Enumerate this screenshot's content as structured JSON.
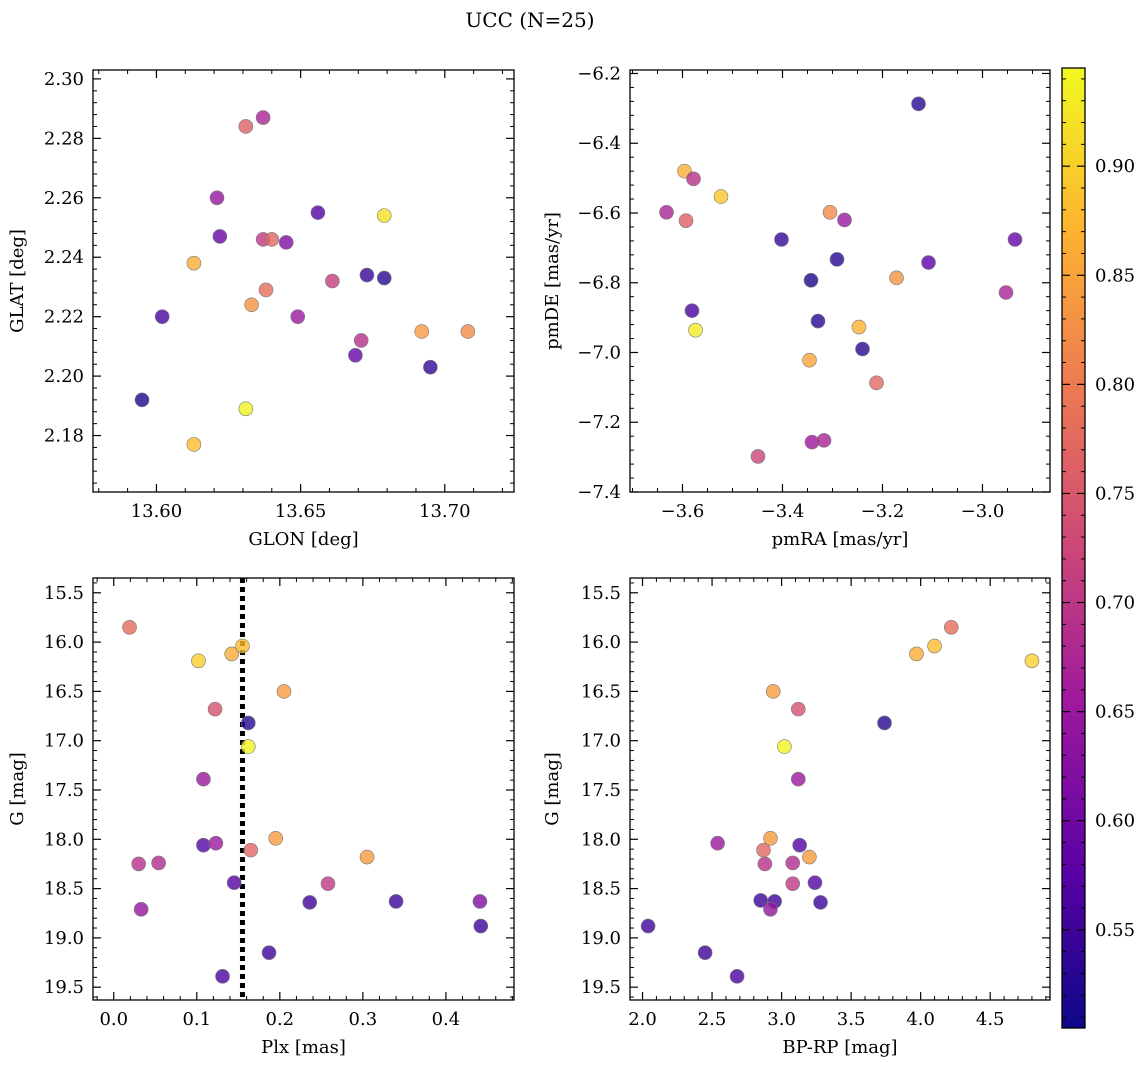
{
  "figure": {
    "title": "UCC (N=25)"
  },
  "colorbar": {
    "colormap": [
      "#0d0887",
      "#5c01a6",
      "#9c179e",
      "#cc4778",
      "#ed7953",
      "#fdb42f",
      "#f0f921"
    ],
    "range": [
      0.505,
      0.945
    ],
    "ticks": [
      "0.55",
      "0.60",
      "0.65",
      "0.70",
      "0.75",
      "0.80",
      "0.85",
      "0.90"
    ]
  },
  "chart_data": [
    {
      "type": "scatter",
      "xlabel": "GLON [deg]",
      "ylabel": "GLAT [deg]",
      "xlim": [
        13.578,
        13.724
      ],
      "ylim": [
        2.161,
        2.303
      ],
      "xticks": [
        "13.60",
        "13.65",
        "13.70"
      ],
      "yticks": [
        "2.18",
        "2.20",
        "2.22",
        "2.24",
        "2.26",
        "2.28",
        "2.30"
      ],
      "points": [
        {
          "x": 13.595,
          "y": 2.192,
          "c": 0.52
        },
        {
          "x": 13.602,
          "y": 2.22,
          "c": 0.56
        },
        {
          "x": 13.613,
          "y": 2.238,
          "c": 0.86
        },
        {
          "x": 13.613,
          "y": 2.177,
          "c": 0.88
        },
        {
          "x": 13.621,
          "y": 2.26,
          "c": 0.64
        },
        {
          "x": 13.622,
          "y": 2.247,
          "c": 0.59
        },
        {
          "x": 13.631,
          "y": 2.284,
          "c": 0.76
        },
        {
          "x": 13.631,
          "y": 2.189,
          "c": 0.94
        },
        {
          "x": 13.633,
          "y": 2.224,
          "c": 0.83
        },
        {
          "x": 13.637,
          "y": 2.287,
          "c": 0.67
        },
        {
          "x": 13.637,
          "y": 2.246,
          "c": 0.7
        },
        {
          "x": 13.638,
          "y": 2.229,
          "c": 0.78
        },
        {
          "x": 13.64,
          "y": 2.246,
          "c": 0.77
        },
        {
          "x": 13.645,
          "y": 2.245,
          "c": 0.62
        },
        {
          "x": 13.649,
          "y": 2.22,
          "c": 0.65
        },
        {
          "x": 13.656,
          "y": 2.255,
          "c": 0.57
        },
        {
          "x": 13.661,
          "y": 2.232,
          "c": 0.71
        },
        {
          "x": 13.669,
          "y": 2.207,
          "c": 0.59
        },
        {
          "x": 13.671,
          "y": 2.212,
          "c": 0.69
        },
        {
          "x": 13.673,
          "y": 2.234,
          "c": 0.54
        },
        {
          "x": 13.679,
          "y": 2.254,
          "c": 0.92
        },
        {
          "x": 13.679,
          "y": 2.233,
          "c": 0.53
        },
        {
          "x": 13.692,
          "y": 2.215,
          "c": 0.84
        },
        {
          "x": 13.695,
          "y": 2.203,
          "c": 0.54
        },
        {
          "x": 13.708,
          "y": 2.215,
          "c": 0.82
        }
      ]
    },
    {
      "type": "scatter",
      "xlabel": "pmRA [mas/yr]",
      "ylabel": "pmDE [mas/yr]",
      "xlim": [
        -3.705,
        -2.865
      ],
      "ylim": [
        -7.4,
        -6.19
      ],
      "xticks": [
        "-3.6",
        "-3.4",
        "-3.2",
        "-3.0"
      ],
      "yticks": [
        "-7.4",
        "-7.2",
        "-7.0",
        "-6.8",
        "-6.6",
        "-6.4",
        "-6.2"
      ],
      "points": [
        {
          "x": -3.128,
          "y": -6.287,
          "c": 0.53
        },
        {
          "x": -3.596,
          "y": -6.48,
          "c": 0.86
        },
        {
          "x": -3.578,
          "y": -6.502,
          "c": 0.69
        },
        {
          "x": -3.523,
          "y": -6.553,
          "c": 0.89
        },
        {
          "x": -3.632,
          "y": -6.598,
          "c": 0.67
        },
        {
          "x": -3.593,
          "y": -6.622,
          "c": 0.76
        },
        {
          "x": -3.305,
          "y": -6.598,
          "c": 0.82
        },
        {
          "x": -3.276,
          "y": -6.62,
          "c": 0.65
        },
        {
          "x": -3.402,
          "y": -6.676,
          "c": 0.54
        },
        {
          "x": -2.935,
          "y": -6.676,
          "c": 0.59
        },
        {
          "x": -3.291,
          "y": -6.733,
          "c": 0.53
        },
        {
          "x": -3.108,
          "y": -6.742,
          "c": 0.58
        },
        {
          "x": -3.343,
          "y": -6.793,
          "c": 0.52
        },
        {
          "x": -3.172,
          "y": -6.786,
          "c": 0.83
        },
        {
          "x": -2.953,
          "y": -6.828,
          "c": 0.67
        },
        {
          "x": -3.581,
          "y": -6.88,
          "c": 0.56
        },
        {
          "x": -3.329,
          "y": -6.91,
          "c": 0.53
        },
        {
          "x": -3.574,
          "y": -6.936,
          "c": 0.93
        },
        {
          "x": -3.247,
          "y": -6.927,
          "c": 0.87
        },
        {
          "x": -3.24,
          "y": -6.99,
          "c": 0.53
        },
        {
          "x": -3.346,
          "y": -7.022,
          "c": 0.85
        },
        {
          "x": -3.212,
          "y": -7.087,
          "c": 0.77
        },
        {
          "x": -3.341,
          "y": -7.257,
          "c": 0.65
        },
        {
          "x": -3.317,
          "y": -7.252,
          "c": 0.67
        },
        {
          "x": -3.449,
          "y": -7.298,
          "c": 0.72
        }
      ]
    },
    {
      "type": "scatter",
      "xlabel": "Plx [mas]",
      "ylabel": "G [mag]",
      "xlim": [
        -0.025,
        0.482
      ],
      "ylim": [
        19.63,
        15.35
      ],
      "xticks": [
        "0.0",
        "0.1",
        "0.2",
        "0.3",
        "0.4"
      ],
      "yticks": [
        "15.5",
        "16.0",
        "16.5",
        "17.0",
        "17.5",
        "18.0",
        "18.5",
        "19.0",
        "19.5"
      ],
      "vline": {
        "x": 0.155,
        "style": "dotted",
        "color": "#000000"
      },
      "points": [
        {
          "x": 0.019,
          "y": 15.85,
          "c": 0.78
        },
        {
          "x": 0.102,
          "y": 16.19,
          "c": 0.9
        },
        {
          "x": 0.142,
          "y": 16.12,
          "c": 0.86
        },
        {
          "x": 0.155,
          "y": 16.04,
          "c": 0.88
        },
        {
          "x": 0.205,
          "y": 16.5,
          "c": 0.84
        },
        {
          "x": 0.122,
          "y": 16.68,
          "c": 0.74
        },
        {
          "x": 0.162,
          "y": 16.82,
          "c": 0.53
        },
        {
          "x": 0.162,
          "y": 17.06,
          "c": 0.94
        },
        {
          "x": 0.108,
          "y": 17.39,
          "c": 0.65
        },
        {
          "x": 0.108,
          "y": 18.06,
          "c": 0.57
        },
        {
          "x": 0.123,
          "y": 18.04,
          "c": 0.65
        },
        {
          "x": 0.165,
          "y": 18.11,
          "c": 0.77
        },
        {
          "x": 0.195,
          "y": 17.99,
          "c": 0.84
        },
        {
          "x": 0.305,
          "y": 18.18,
          "c": 0.84
        },
        {
          "x": 0.03,
          "y": 18.25,
          "c": 0.69
        },
        {
          "x": 0.054,
          "y": 18.24,
          "c": 0.68
        },
        {
          "x": 0.145,
          "y": 18.44,
          "c": 0.57
        },
        {
          "x": 0.258,
          "y": 18.45,
          "c": 0.7
        },
        {
          "x": 0.033,
          "y": 18.71,
          "c": 0.64
        },
        {
          "x": 0.236,
          "y": 18.64,
          "c": 0.55
        },
        {
          "x": 0.34,
          "y": 18.63,
          "c": 0.55
        },
        {
          "x": 0.441,
          "y": 18.63,
          "c": 0.62
        },
        {
          "x": 0.442,
          "y": 18.88,
          "c": 0.55
        },
        {
          "x": 0.187,
          "y": 19.15,
          "c": 0.55
        },
        {
          "x": 0.131,
          "y": 19.39,
          "c": 0.56
        }
      ]
    },
    {
      "type": "scatter",
      "xlabel": "BP-RP [mag]",
      "ylabel": "G [mag]",
      "xlim": [
        1.91,
        4.93
      ],
      "ylim": [
        19.63,
        15.35
      ],
      "xticks": [
        "2.0",
        "2.5",
        "3.0",
        "3.5",
        "4.0",
        "4.5"
      ],
      "yticks": [
        "15.5",
        "16.0",
        "16.5",
        "17.0",
        "17.5",
        "18.0",
        "18.5",
        "19.0",
        "19.5"
      ],
      "points": [
        {
          "x": 4.22,
          "y": 15.85,
          "c": 0.78
        },
        {
          "x": 4.1,
          "y": 16.04,
          "c": 0.88
        },
        {
          "x": 3.97,
          "y": 16.12,
          "c": 0.86
        },
        {
          "x": 4.8,
          "y": 16.19,
          "c": 0.9
        },
        {
          "x": 2.94,
          "y": 16.5,
          "c": 0.84
        },
        {
          "x": 3.12,
          "y": 16.68,
          "c": 0.74
        },
        {
          "x": 3.74,
          "y": 16.82,
          "c": 0.53
        },
        {
          "x": 3.02,
          "y": 17.06,
          "c": 0.94
        },
        {
          "x": 3.12,
          "y": 17.39,
          "c": 0.65
        },
        {
          "x": 2.92,
          "y": 17.99,
          "c": 0.84
        },
        {
          "x": 2.54,
          "y": 18.04,
          "c": 0.65
        },
        {
          "x": 3.13,
          "y": 18.06,
          "c": 0.57
        },
        {
          "x": 2.87,
          "y": 18.11,
          "c": 0.77
        },
        {
          "x": 3.2,
          "y": 18.18,
          "c": 0.84
        },
        {
          "x": 2.88,
          "y": 18.25,
          "c": 0.69
        },
        {
          "x": 3.08,
          "y": 18.24,
          "c": 0.68
        },
        {
          "x": 3.08,
          "y": 18.45,
          "c": 0.7
        },
        {
          "x": 3.24,
          "y": 18.44,
          "c": 0.57
        },
        {
          "x": 2.85,
          "y": 18.62,
          "c": 0.55
        },
        {
          "x": 2.95,
          "y": 18.63,
          "c": 0.55
        },
        {
          "x": 3.28,
          "y": 18.64,
          "c": 0.55
        },
        {
          "x": 2.92,
          "y": 18.71,
          "c": 0.64
        },
        {
          "x": 2.04,
          "y": 18.88,
          "c": 0.55
        },
        {
          "x": 2.45,
          "y": 19.15,
          "c": 0.55
        },
        {
          "x": 2.68,
          "y": 19.39,
          "c": 0.56
        }
      ]
    }
  ]
}
